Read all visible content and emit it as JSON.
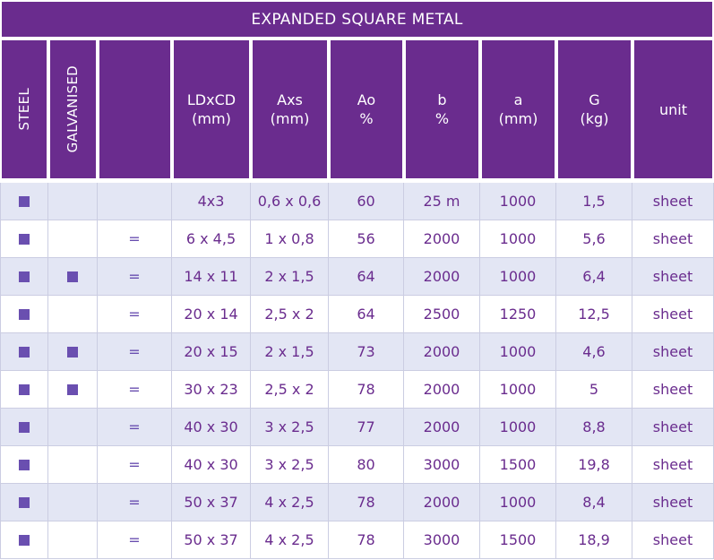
{
  "table": {
    "title": "EXPANDED SQUARE METAL",
    "headers": {
      "steel": "STEEL",
      "galvanised": "GALVANISED",
      "blank": "",
      "ldxcd": [
        "LDxCD",
        "(mm)"
      ],
      "axs": [
        "Axs",
        "(mm)"
      ],
      "ao": [
        "Ao",
        "%"
      ],
      "b": [
        "b",
        "%"
      ],
      "a": [
        "a",
        "(mm)"
      ],
      "g": [
        "G",
        "(kg)"
      ],
      "unit": [
        "unit"
      ]
    },
    "marker_icon": "filled-square-icon",
    "colors": {
      "header_bg": "#6a2c8e",
      "text": "#6a2c8e",
      "marker": "#6a4fb0",
      "row_shade": "#e3e6f4",
      "grid": "#cbcde2"
    },
    "rows": [
      {
        "steel": true,
        "galvanised": false,
        "eq": "",
        "ldxcd": "4x3",
        "axs": "0,6 x 0,6",
        "ao": "60",
        "b": "25 m",
        "a": "1000",
        "g": "1,5",
        "unit": "sheet"
      },
      {
        "steel": true,
        "galvanised": false,
        "eq": "=",
        "ldxcd": "6 x 4,5",
        "axs": "1 x 0,8",
        "ao": "56",
        "b": "2000",
        "a": "1000",
        "g": "5,6",
        "unit": "sheet"
      },
      {
        "steel": true,
        "galvanised": true,
        "eq": "=",
        "ldxcd": "14 x 11",
        "axs": "2 x 1,5",
        "ao": "64",
        "b": "2000",
        "a": "1000",
        "g": "6,4",
        "unit": "sheet"
      },
      {
        "steel": true,
        "galvanised": false,
        "eq": "=",
        "ldxcd": "20 x 14",
        "axs": "2,5 x 2",
        "ao": "64",
        "b": "2500",
        "a": "1250",
        "g": "12,5",
        "unit": "sheet"
      },
      {
        "steel": true,
        "galvanised": true,
        "eq": "=",
        "ldxcd": "20 x 15",
        "axs": "2 x 1,5",
        "ao": "73",
        "b": "2000",
        "a": "1000",
        "g": "4,6",
        "unit": "sheet"
      },
      {
        "steel": true,
        "galvanised": true,
        "eq": "=",
        "ldxcd": "30 x 23",
        "axs": "2,5 x 2",
        "ao": "78",
        "b": "2000",
        "a": "1000",
        "g": "5",
        "unit": "sheet"
      },
      {
        "steel": true,
        "galvanised": false,
        "eq": "=",
        "ldxcd": "40 x 30",
        "axs": "3 x 2,5",
        "ao": "77",
        "b": "2000",
        "a": "1000",
        "g": "8,8",
        "unit": "sheet"
      },
      {
        "steel": true,
        "galvanised": false,
        "eq": "=",
        "ldxcd": "40 x 30",
        "axs": "3 x 2,5",
        "ao": "80",
        "b": "3000",
        "a": "1500",
        "g": "19,8",
        "unit": "sheet"
      },
      {
        "steel": true,
        "galvanised": false,
        "eq": "=",
        "ldxcd": "50 x 37",
        "axs": "4 x 2,5",
        "ao": "78",
        "b": "2000",
        "a": "1000",
        "g": "8,4",
        "unit": "sheet"
      },
      {
        "steel": true,
        "galvanised": false,
        "eq": "=",
        "ldxcd": "50 x 37",
        "axs": "4 x 2,5",
        "ao": "78",
        "b": "3000",
        "a": "1500",
        "g": "18,9",
        "unit": "sheet"
      }
    ]
  }
}
